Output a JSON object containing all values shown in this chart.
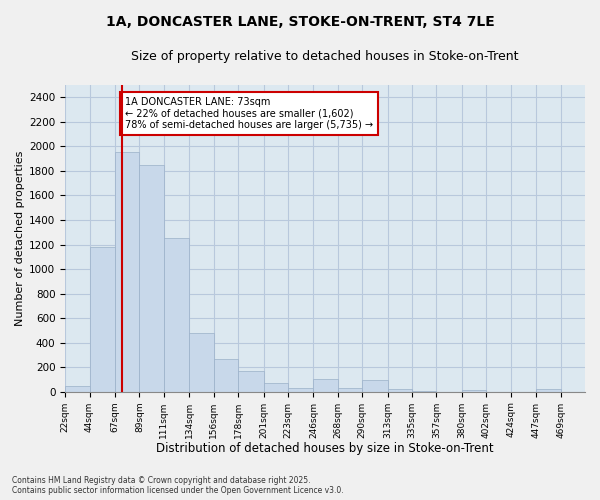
{
  "title1": "1A, DONCASTER LANE, STOKE-ON-TRENT, ST4 7LE",
  "title2": "Size of property relative to detached houses in Stoke-on-Trent",
  "xlabel": "Distribution of detached houses by size in Stoke-on-Trent",
  "ylabel": "Number of detached properties",
  "bins": [
    "22sqm",
    "44sqm",
    "67sqm",
    "89sqm",
    "111sqm",
    "134sqm",
    "156sqm",
    "178sqm",
    "201sqm",
    "223sqm",
    "246sqm",
    "268sqm",
    "290sqm",
    "313sqm",
    "335sqm",
    "357sqm",
    "380sqm",
    "402sqm",
    "424sqm",
    "447sqm",
    "469sqm"
  ],
  "bin_edges": [
    22,
    44,
    67,
    89,
    111,
    134,
    156,
    178,
    201,
    223,
    246,
    268,
    290,
    313,
    335,
    357,
    380,
    402,
    424,
    447,
    469,
    491
  ],
  "values": [
    50,
    1180,
    1950,
    1850,
    1250,
    480,
    265,
    165,
    70,
    30,
    100,
    30,
    95,
    20,
    8,
    0,
    15,
    0,
    0,
    25,
    0
  ],
  "bar_color": "#c8d8ea",
  "bar_edge_color": "#9ab0c8",
  "property_sqm": 73,
  "property_line_color": "#cc0000",
  "annotation_text": "1A DONCASTER LANE: 73sqm\n← 22% of detached houses are smaller (1,602)\n78% of semi-detached houses are larger (5,735) →",
  "annotation_box_color": "#ffffff",
  "annotation_box_edge_color": "#cc0000",
  "ylim": [
    0,
    2500
  ],
  "yticks": [
    0,
    200,
    400,
    600,
    800,
    1000,
    1200,
    1400,
    1600,
    1800,
    2000,
    2200,
    2400
  ],
  "grid_color": "#b8c8dc",
  "background_color": "#dce8f0",
  "fig_background": "#f0f0f0",
  "footer": "Contains HM Land Registry data © Crown copyright and database right 2025.\nContains public sector information licensed under the Open Government Licence v3.0.",
  "title1_fontsize": 10,
  "title2_fontsize": 9,
  "xlabel_fontsize": 8.5,
  "ylabel_fontsize": 8
}
